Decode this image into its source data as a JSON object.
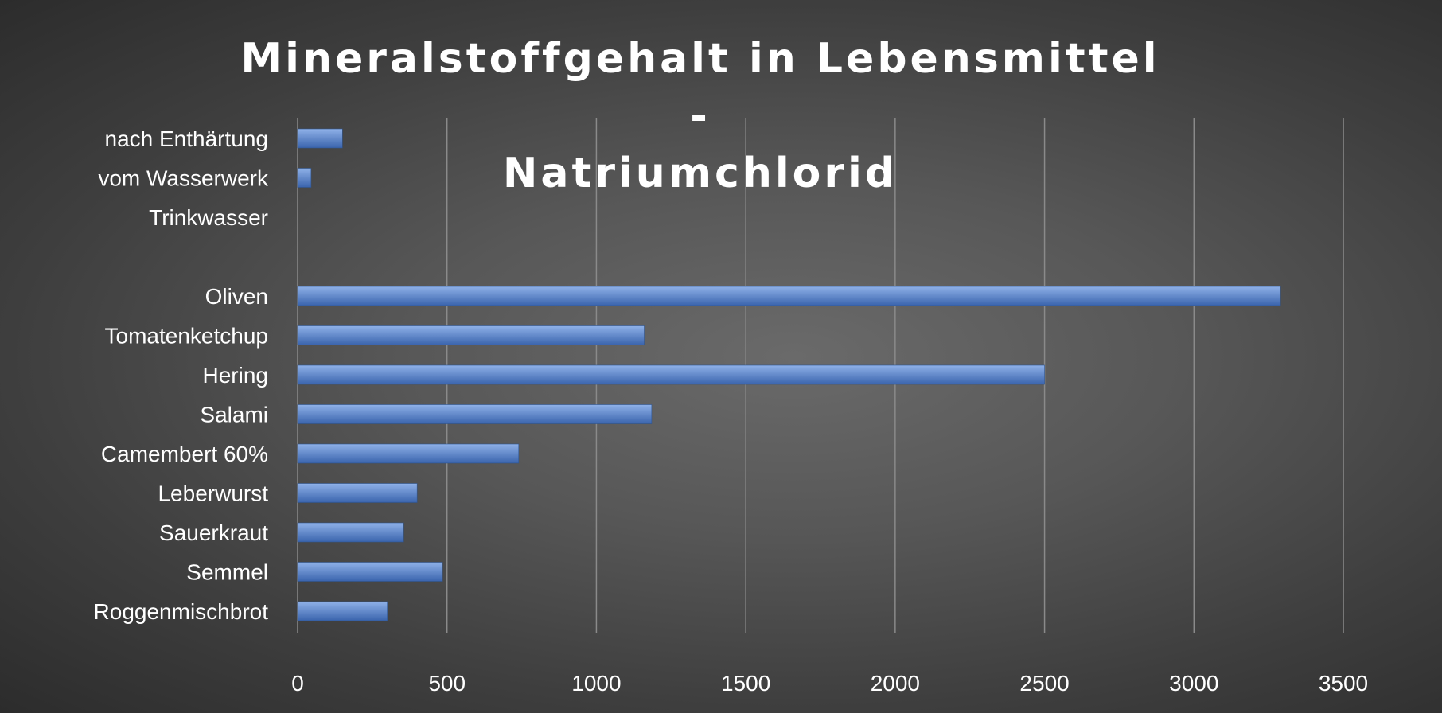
{
  "chart_data": {
    "type": "bar",
    "orientation": "horizontal",
    "title": "Mineralstoffgehalt in Lebensmittel -\nNatriumchlorid",
    "xlabel": "",
    "ylabel": "",
    "categories": [
      "nach Enthärtung",
      "vom Wasserwerk",
      "Trinkwasser",
      "",
      "Oliven",
      "Tomatenketchup",
      "Hering",
      "Salami",
      "Camembert 60%",
      "Leberwurst",
      "Sauerkraut",
      "Semmel",
      "Roggenmischbrot"
    ],
    "values": [
      150,
      45,
      0,
      0,
      3290,
      1160,
      2500,
      1185,
      740,
      400,
      355,
      485,
      300
    ],
    "xlim": [
      0,
      3500
    ],
    "xticks": [
      0,
      500,
      1000,
      1500,
      2000,
      2500,
      3000,
      3500
    ],
    "grid": true,
    "legend": "none",
    "colors": {
      "bar_top": "#8fb1e8",
      "bar_bottom": "#3a64ad",
      "grid": "#8a8a8a",
      "text": "#ffffff"
    }
  }
}
